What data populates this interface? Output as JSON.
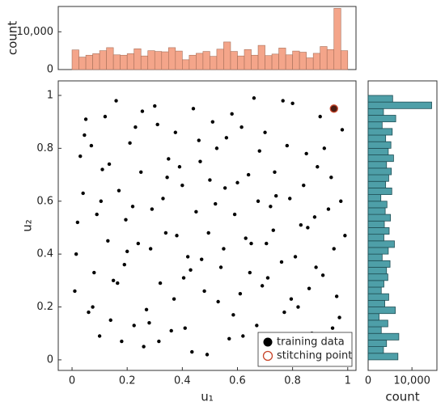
{
  "chart_data": [
    {
      "type": "histogram",
      "orientation": "vertical",
      "ylabel": "count",
      "bins": [
        0,
        0.025,
        0.05,
        0.075,
        0.1,
        0.125,
        0.15,
        0.175,
        0.2,
        0.225,
        0.25,
        0.275,
        0.3,
        0.325,
        0.35,
        0.375,
        0.4,
        0.425,
        0.45,
        0.475,
        0.5,
        0.525,
        0.55,
        0.575,
        0.6,
        0.625,
        0.65,
        0.675,
        0.7,
        0.725,
        0.75,
        0.775,
        0.8,
        0.825,
        0.85,
        0.875,
        0.9,
        0.925,
        0.95,
        0.975,
        1
      ],
      "values": [
        5200,
        3300,
        3800,
        4200,
        5000,
        5800,
        3900,
        3800,
        4200,
        5500,
        3600,
        5000,
        4800,
        4700,
        5800,
        4900,
        2600,
        3800,
        4300,
        4800,
        3500,
        5400,
        7300,
        4800,
        3600,
        5300,
        3800,
        6400,
        3700,
        4100,
        5700,
        3900,
        4900,
        4600,
        3100,
        4300,
        6100,
        5300,
        16200,
        5000
      ],
      "color": "#f4a58a",
      "edgecolor": "#a8705a",
      "xlim": [
        -0.05,
        1.03
      ],
      "ylim": [
        0,
        16700
      ],
      "yticks": [
        0,
        {
          "value": 10000,
          "label": "10,000"
        }
      ]
    },
    {
      "type": "scatter",
      "xlabel": "u₁",
      "ylabel": "u₂",
      "xlim": [
        -0.05,
        1.03
      ],
      "ylim": [
        -0.04,
        1.055
      ],
      "xticks": [
        0,
        0.2,
        0.4,
        0.6,
        0.8,
        1
      ],
      "yticks": [
        0,
        0.2,
        0.4,
        0.6,
        0.8,
        1
      ],
      "legend": "lower right",
      "series": [
        {
          "name": "training data",
          "color": "#000000",
          "marker": "filled",
          "x": [
            0.02,
            0.05,
            0.08,
            0.11,
            0.14,
            0.17,
            0.2,
            0.23,
            0.26,
            0.29,
            0.32,
            0.35,
            0.38,
            0.41,
            0.44,
            0.47,
            0.5,
            0.53,
            0.56,
            0.59,
            0.62,
            0.65,
            0.68,
            0.71,
            0.74,
            0.77,
            0.8,
            0.83,
            0.86,
            0.89,
            0.92,
            0.95,
            0.98,
            0.01,
            0.04,
            0.07,
            0.1,
            0.13,
            0.16,
            0.19,
            0.22,
            0.25,
            0.28,
            0.31,
            0.34,
            0.37,
            0.4,
            0.43,
            0.46,
            0.49,
            0.52,
            0.55,
            0.58,
            0.61,
            0.64,
            0.67,
            0.7,
            0.73,
            0.76,
            0.79,
            0.82,
            0.85,
            0.88,
            0.91,
            0.94,
            0.97,
            0.03,
            0.06,
            0.09,
            0.12,
            0.15,
            0.18,
            0.21,
            0.24,
            0.27,
            0.3,
            0.33,
            0.36,
            0.39,
            0.42,
            0.45,
            0.48,
            0.51,
            0.54,
            0.57,
            0.6,
            0.63,
            0.66,
            0.69,
            0.72,
            0.75,
            0.78,
            0.81,
            0.84,
            0.87,
            0.9,
            0.93,
            0.96,
            0.99,
            0.015,
            0.045,
            0.075,
            0.105,
            0.135,
            0.165,
            0.195,
            0.225,
            0.255,
            0.285,
            0.315,
            0.345,
            0.375,
            0.405,
            0.435,
            0.465,
            0.495,
            0.525,
            0.555,
            0.585,
            0.615,
            0.645,
            0.675,
            0.705,
            0.735,
            0.765,
            0.795,
            0.825,
            0.855,
            0.885,
            0.915,
            0.945,
            0.975
          ],
          "y": [
            0.52,
            0.91,
            0.33,
            0.72,
            0.15,
            0.64,
            0.41,
            0.88,
            0.05,
            0.57,
            0.29,
            0.76,
            0.47,
            0.12,
            0.95,
            0.38,
            0.68,
            0.22,
            0.84,
            0.55,
            0.09,
            0.44,
            0.79,
            0.31,
            0.62,
            0.18,
            0.97,
            0.51,
            0.27,
            0.73,
            0.06,
            0.42,
            0.87,
            0.26,
            0.63,
            0.81,
            0.09,
            0.45,
            0.98,
            0.36,
            0.58,
            0.71,
            0.14,
            0.89,
            0.48,
            0.23,
            0.66,
            0.34,
            0.83,
            0.02,
            0.59,
            0.42,
            0.93,
            0.25,
            0.7,
            0.13,
            0.86,
            0.49,
            0.37,
            0.61,
            0.2,
            0.78,
            0.54,
            0.32,
            0.69,
            0.16,
            0.77,
            0.18,
            0.55,
            0.92,
            0.3,
            0.07,
            0.82,
            0.44,
            0.19,
            0.96,
            0.61,
            0.11,
            0.73,
            0.39,
            0.56,
            0.26,
            0.9,
            0.35,
            0.08,
            0.67,
            0.46,
            0.99,
            0.28,
            0.58,
            0.04,
            0.81,
            0.39,
            0.66,
            0.1,
            0.92,
            0.57,
            0.24,
            0.47,
            0.4,
            0.85,
            0.2,
            0.6,
            0.74,
            0.29,
            0.53,
            0.13,
            0.94,
            0.42,
            0.07,
            0.69,
            0.86,
            0.31,
            0.03,
            0.75,
            0.48,
            0.8,
            0.65,
            0.17,
            0.88,
            0.33,
            0.6,
            0.44,
            0.71,
            0.98,
            0.23,
            0.07,
            0.5,
            0.35,
            0.8,
            0.12,
            0.6
          ]
        },
        {
          "name": "stitching point",
          "color": "#c8452a",
          "marker": "hollow",
          "x": [
            0.95
          ],
          "y": [
            0.95
          ]
        }
      ]
    },
    {
      "type": "histogram",
      "orientation": "horizontal",
      "xlabel": "count",
      "bins": [
        0,
        0.025,
        0.05,
        0.075,
        0.1,
        0.125,
        0.15,
        0.175,
        0.2,
        0.225,
        0.25,
        0.275,
        0.3,
        0.325,
        0.35,
        0.375,
        0.4,
        0.425,
        0.45,
        0.475,
        0.5,
        0.525,
        0.55,
        0.575,
        0.6,
        0.625,
        0.65,
        0.675,
        0.7,
        0.725,
        0.75,
        0.775,
        0.8,
        0.825,
        0.85,
        0.875,
        0.9,
        0.925,
        0.95,
        0.975,
        1
      ],
      "values": [
        6800,
        3500,
        4200,
        7000,
        3000,
        4500,
        2500,
        6200,
        3800,
        4700,
        3000,
        3600,
        4500,
        4200,
        5000,
        3200,
        4600,
        6000,
        3600,
        4800,
        3700,
        5100,
        3900,
        4300,
        2900,
        5400,
        4000,
        4700,
        5300,
        4200,
        5800,
        4600,
        5200,
        4000,
        5500,
        3200,
        6300,
        3500,
        14500,
        5600
      ],
      "color": "#4e9fa8",
      "edgecolor": "#1f4f55",
      "xlim": [
        0,
        15700
      ],
      "xticks": [
        0,
        {
          "value": 10000,
          "label": "10,000"
        }
      ],
      "ylim": [
        -0.04,
        1.055
      ]
    }
  ]
}
